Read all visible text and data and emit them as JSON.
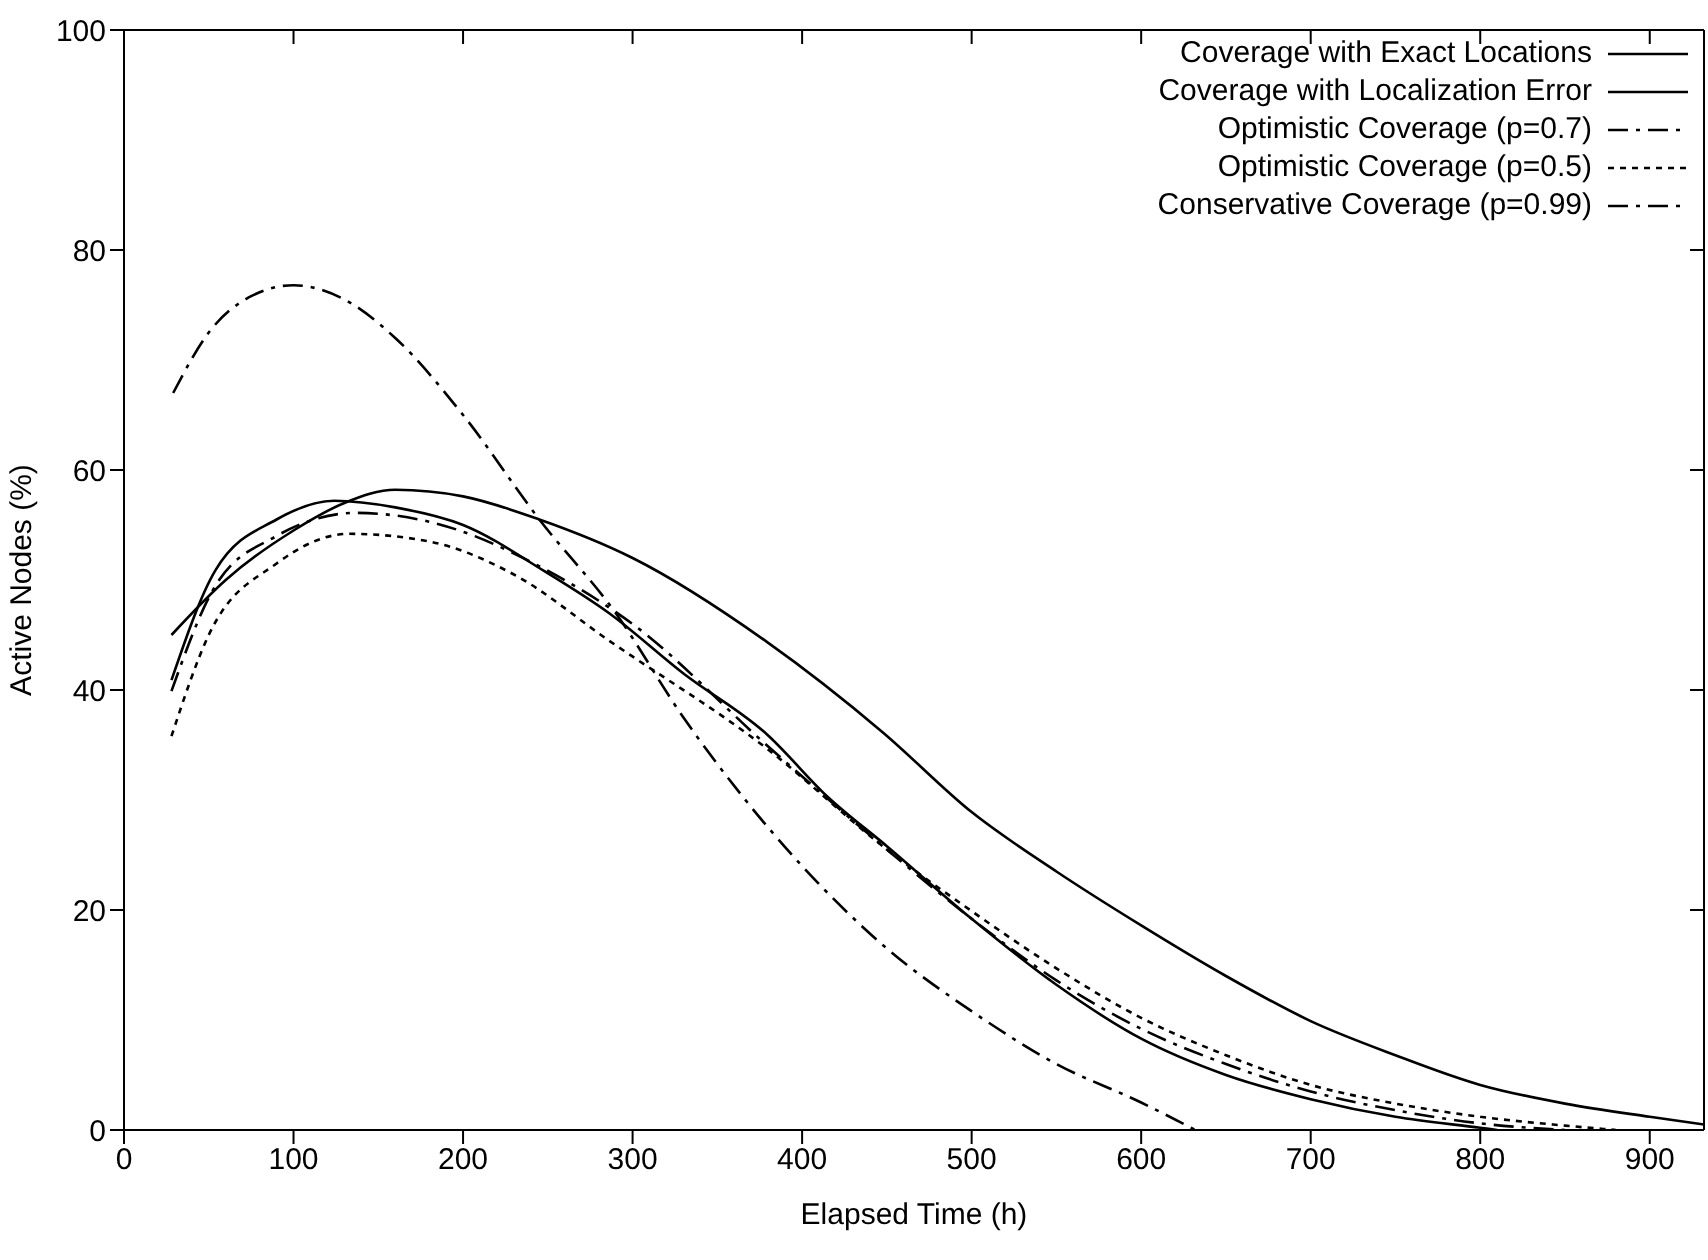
{
  "chart_data": {
    "type": "line",
    "xlabel": "Elapsed Time (h)",
    "ylabel": "Active Nodes (%)",
    "xlim": [
      0,
      932
    ],
    "xticks": [
      0,
      100,
      200,
      300,
      400,
      500,
      600,
      700,
      800,
      900
    ],
    "ylim": [
      0,
      100
    ],
    "yticks": [
      0,
      20,
      40,
      60,
      80,
      100
    ],
    "legend": "top right",
    "marker": "none",
    "series": [
      {
        "name": "Coverage with Exact Locations",
        "color": "#000000",
        "line_style": "solid",
        "x": [
          28,
          60,
          100,
          130,
          160,
          200,
          245,
          300,
          379,
          448,
          500,
          550,
          600,
          650,
          700,
          750,
          800,
          850,
          900,
          932
        ],
        "values": [
          45,
          50,
          54.5,
          57,
          58.2,
          57.6,
          55.5,
          52,
          44.4,
          36.1,
          28.9,
          23.5,
          18.6,
          14,
          9.9,
          6.8,
          4.1,
          2.4,
          1.2,
          0.5
        ]
      },
      {
        "name": "Coverage with Localization Error",
        "color": "#000000",
        "line_style": "solid",
        "x": [
          28,
          54,
          90,
          124,
          160,
          200,
          248,
          286,
          330,
          379,
          415,
          450,
          500,
          550,
          600,
          650,
          700,
          750,
          800,
          810
        ],
        "values": [
          40.9,
          50.9,
          55.5,
          57.2,
          56.6,
          55,
          50.8,
          47,
          41.5,
          36,
          30.3,
          25.8,
          19.2,
          13.2,
          8.3,
          5,
          2.8,
          1.2,
          0.2,
          0
        ]
      },
      {
        "name": "Optimistic Coverage (p=0.7)",
        "color": "#000000",
        "line_style": "dashed",
        "x": [
          28,
          54,
          90,
          137,
          180,
          248,
          300,
          379,
          450,
          500,
          550,
          600,
          650,
          700,
          750,
          800,
          850
        ],
        "values": [
          39.9,
          49.5,
          54,
          56.1,
          55.3,
          51,
          46,
          35,
          25.5,
          19.2,
          13.6,
          9.2,
          6,
          3.5,
          1.8,
          0.6,
          0
        ]
      },
      {
        "name": "Optimistic Coverage (p=0.5)",
        "color": "#000000",
        "line_style": "dotted",
        "x": [
          28,
          50,
          90,
          133,
          180,
          230,
          286,
          379,
          450,
          500,
          550,
          600,
          650,
          700,
          750,
          800,
          850,
          880
        ],
        "values": [
          35.8,
          45,
          51.5,
          54.2,
          53.5,
          50.5,
          44.5,
          34.7,
          25.5,
          19.9,
          14.7,
          10.2,
          6.8,
          4.1,
          2.4,
          1.2,
          0.4,
          0
        ]
      },
      {
        "name": "Conservative Coverage (p=0.99)",
        "color": "#000000",
        "line_style": "dashed",
        "x": [
          29,
          50,
          75,
          100,
          130,
          160,
          200,
          245,
          290,
          330,
          365,
          400,
          450,
          500,
          550,
          600,
          632
        ],
        "values": [
          67,
          72.5,
          75.8,
          76.8,
          75.5,
          72,
          65,
          55.5,
          47,
          37.5,
          30.3,
          24,
          16.5,
          10.8,
          6,
          2.5,
          0
        ]
      }
    ]
  }
}
